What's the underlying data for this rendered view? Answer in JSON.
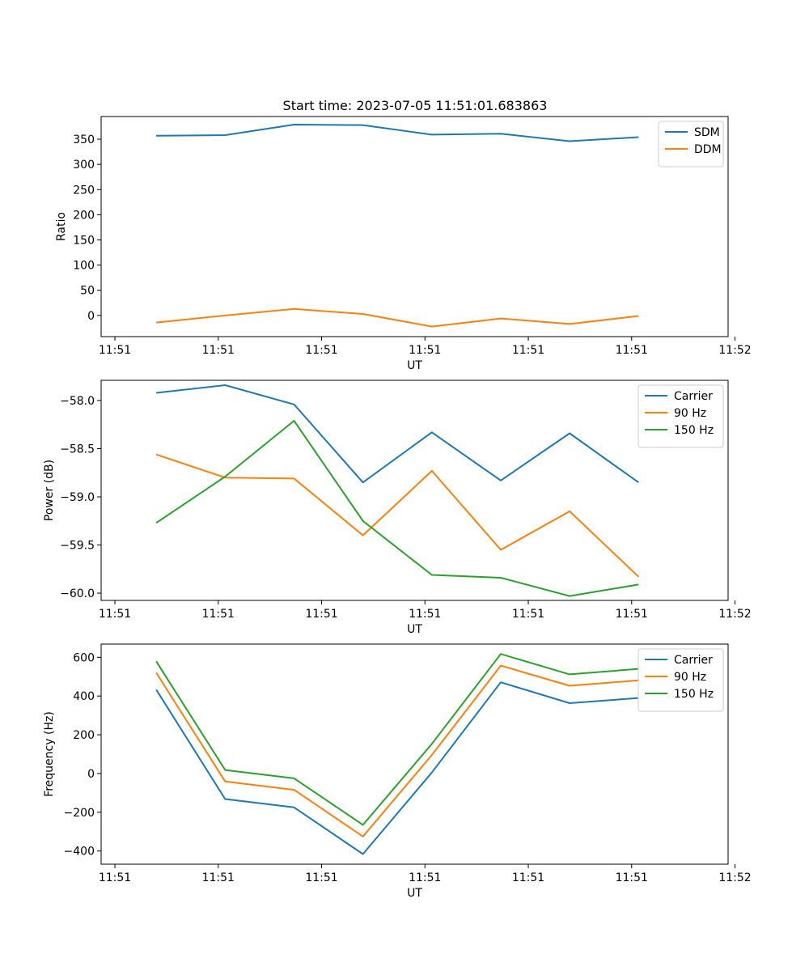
{
  "title": "Start time: 2023-07-05 11:51:01.683863",
  "colors": {
    "blue": "#1f77b4",
    "orange": "#ff7f0e",
    "green": "#2ca02c"
  },
  "chart_data": [
    {
      "type": "line",
      "title": "Start time: 2023-07-05 11:51:01.683863",
      "xlabel": "UT",
      "ylabel": "Ratio",
      "x": [
        1,
        2,
        3,
        4,
        5,
        6,
        7,
        8
      ],
      "xlim": [
        0.2,
        9.3
      ],
      "xticks": [
        0.4,
        1.9,
        3.4,
        4.9,
        6.4,
        7.9,
        9.4
      ],
      "xtick_labels": [
        "11:51",
        "11:51",
        "11:51",
        "11:51",
        "11:51",
        "11:51",
        "11:52"
      ],
      "ylim": [
        -42,
        395
      ],
      "yticks": [
        0,
        50,
        100,
        150,
        200,
        250,
        300,
        350
      ],
      "ytick_labels": [
        "0",
        "50",
        "100",
        "150",
        "200",
        "250",
        "300",
        "350"
      ],
      "legend": "top-right",
      "series": [
        {
          "name": "SDM",
          "color": "#1f77b4",
          "values": [
            357,
            358,
            379,
            378,
            359,
            361,
            346,
            354
          ]
        },
        {
          "name": "DDM",
          "color": "#ff7f0e",
          "values": [
            -14,
            0,
            13,
            3,
            -22,
            -6,
            -17,
            -1
          ]
        }
      ]
    },
    {
      "type": "line",
      "xlabel": "UT",
      "ylabel": "Power (dB)",
      "x": [
        1,
        2,
        3,
        4,
        5,
        6,
        7,
        8
      ],
      "xlim": [
        0.2,
        9.3
      ],
      "xticks": [
        0.4,
        1.9,
        3.4,
        4.9,
        6.4,
        7.9,
        9.4
      ],
      "xtick_labels": [
        "11:51",
        "11:51",
        "11:51",
        "11:51",
        "11:51",
        "11:51",
        "11:52"
      ],
      "ylim": [
        -60.075,
        -57.79
      ],
      "yticks": [
        -60.0,
        -59.5,
        -59.0,
        -58.5,
        -58.0
      ],
      "ytick_labels": [
        "−60.0",
        "−59.5",
        "−59.0",
        "−58.5",
        "−58.0"
      ],
      "legend": "top-right",
      "series": [
        {
          "name": "Carrier",
          "color": "#1f77b4",
          "values": [
            -57.92,
            -57.84,
            -58.04,
            -58.85,
            -58.33,
            -58.83,
            -58.34,
            -58.85
          ]
        },
        {
          "name": "90 Hz",
          "color": "#ff7f0e",
          "values": [
            -58.56,
            -58.8,
            -58.81,
            -59.4,
            -58.73,
            -59.55,
            -59.15,
            -59.83
          ]
        },
        {
          "name": "150 Hz",
          "color": "#2ca02c",
          "values": [
            -59.27,
            -58.79,
            -58.21,
            -59.25,
            -59.81,
            -59.84,
            -60.03,
            -59.91
          ]
        }
      ]
    },
    {
      "type": "line",
      "xlabel": "UT",
      "ylabel": "Frequency (Hz)",
      "x": [
        1,
        2,
        3,
        4,
        5,
        6,
        7,
        8
      ],
      "xlim": [
        0.2,
        9.3
      ],
      "xticks": [
        0.4,
        1.9,
        3.4,
        4.9,
        6.4,
        7.9,
        9.4
      ],
      "xtick_labels": [
        "11:51",
        "11:51",
        "11:51",
        "11:51",
        "11:51",
        "11:51",
        "11:52"
      ],
      "ylim": [
        -468,
        668
      ],
      "yticks": [
        -400,
        -200,
        0,
        200,
        400,
        600
      ],
      "ytick_labels": [
        "−400",
        "−200",
        "0",
        "200",
        "400",
        "600"
      ],
      "legend": "top-right",
      "series": [
        {
          "name": "Carrier",
          "color": "#1f77b4",
          "values": [
            433,
            -132,
            -175,
            -416,
            5,
            471,
            363,
            390
          ]
        },
        {
          "name": "90 Hz",
          "color": "#ff7f0e",
          "values": [
            520,
            -41,
            -84,
            -325,
            96,
            557,
            453,
            481
          ]
        },
        {
          "name": "150 Hz",
          "color": "#2ca02c",
          "values": [
            579,
            18,
            -25,
            -265,
            153,
            617,
            512,
            540
          ]
        }
      ]
    }
  ]
}
